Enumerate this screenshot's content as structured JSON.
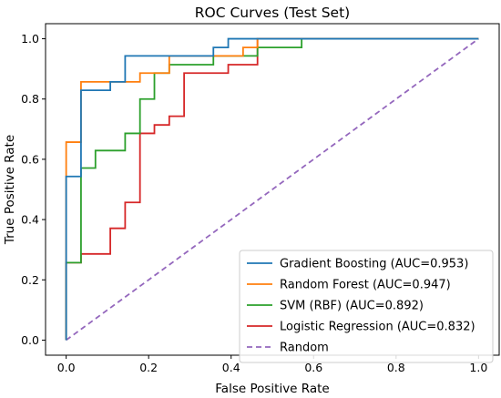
{
  "chart_data": {
    "type": "line",
    "title": "ROC Curves (Test Set)",
    "xlabel": "False Positive Rate",
    "ylabel": "True Positive Rate",
    "xlim": [
      -0.05,
      1.05
    ],
    "ylim": [
      -0.05,
      1.05
    ],
    "xticks": [
      "0.0",
      "0.2",
      "0.4",
      "0.6",
      "0.8",
      "1.0"
    ],
    "yticks": [
      "0.0",
      "0.2",
      "0.4",
      "0.6",
      "0.8",
      "1.0"
    ],
    "grid": false,
    "legend_position": "bottom-right",
    "series": [
      {
        "name": "Gradient Boosting (AUC=0.953)",
        "color": "#1f77b4",
        "style": "solid",
        "x": [
          0,
          0,
          0.036,
          0.036,
          0.107,
          0.107,
          0.143,
          0.143,
          0.357,
          0.357,
          0.393,
          0.393,
          1.0
        ],
        "y": [
          0,
          0.543,
          0.543,
          0.829,
          0.829,
          0.857,
          0.857,
          0.943,
          0.943,
          0.971,
          0.971,
          1.0,
          1.0
        ]
      },
      {
        "name": "Random Forest (AUC=0.947)",
        "color": "#ff7f0e",
        "style": "solid",
        "x": [
          0,
          0,
          0.036,
          0.036,
          0.179,
          0.179,
          0.25,
          0.25,
          0.429,
          0.429,
          0.464,
          0.464,
          1.0
        ],
        "y": [
          0,
          0.657,
          0.657,
          0.857,
          0.857,
          0.886,
          0.886,
          0.943,
          0.943,
          0.971,
          0.971,
          1.0,
          1.0
        ]
      },
      {
        "name": "SVM (RBF) (AUC=0.892)",
        "color": "#2ca02c",
        "style": "solid",
        "x": [
          0,
          0,
          0.036,
          0.036,
          0.071,
          0.071,
          0.143,
          0.143,
          0.179,
          0.179,
          0.214,
          0.214,
          0.25,
          0.25,
          0.357,
          0.357,
          0.464,
          0.464,
          0.571,
          0.571,
          1.0
        ],
        "y": [
          0,
          0.257,
          0.257,
          0.571,
          0.571,
          0.629,
          0.629,
          0.686,
          0.686,
          0.8,
          0.8,
          0.886,
          0.886,
          0.914,
          0.914,
          0.943,
          0.943,
          0.971,
          0.971,
          1.0,
          1.0
        ]
      },
      {
        "name": "Logistic Regression (AUC=0.832)",
        "color": "#d62728",
        "style": "solid",
        "x": [
          0,
          0,
          0.036,
          0.036,
          0.107,
          0.107,
          0.143,
          0.143,
          0.179,
          0.179,
          0.214,
          0.214,
          0.25,
          0.25,
          0.286,
          0.286,
          0.393,
          0.393,
          0.464,
          0.464,
          1.0
        ],
        "y": [
          0,
          0.257,
          0.257,
          0.286,
          0.286,
          0.371,
          0.371,
          0.457,
          0.457,
          0.686,
          0.686,
          0.714,
          0.714,
          0.743,
          0.743,
          0.886,
          0.886,
          0.914,
          0.914,
          1.0,
          1.0
        ]
      },
      {
        "name": "Random",
        "color": "#9467bd",
        "style": "dashed",
        "x": [
          0,
          1
        ],
        "y": [
          0,
          1
        ]
      }
    ]
  }
}
